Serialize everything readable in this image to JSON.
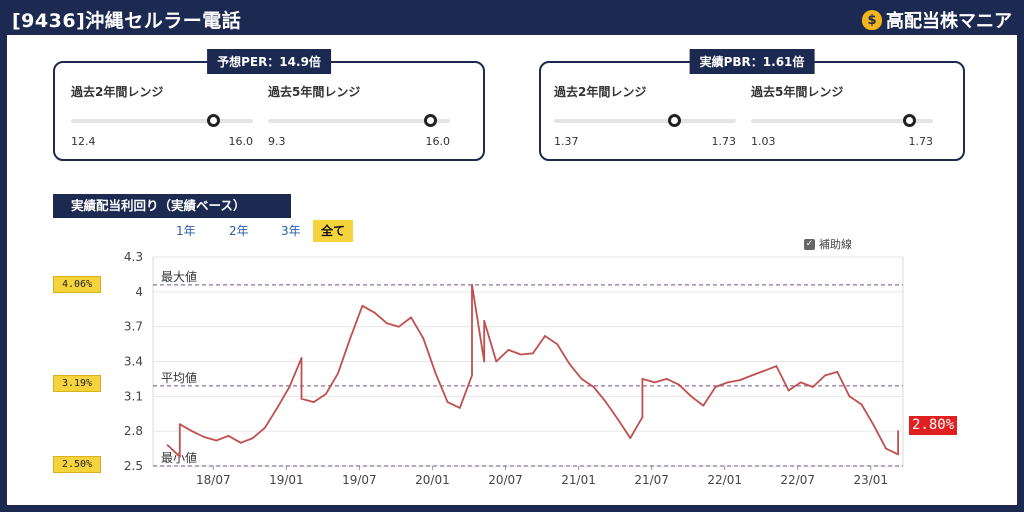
{
  "header": {
    "title": "[9436]沖縄セルラー電話",
    "brand": "高配当株マニア",
    "brand_icon": "money-bag-icon"
  },
  "per_card": {
    "title": "予想PER：14.9倍",
    "ranges": [
      {
        "label": "過去2年間レンジ",
        "min": "12.4",
        "max": "16.0",
        "position": 0.78
      },
      {
        "label": "過去5年間レンジ",
        "min": "9.3",
        "max": "16.0",
        "position": 0.89
      }
    ]
  },
  "pbr_card": {
    "title": "実績PBR：1.61倍",
    "ranges": [
      {
        "label": "過去2年間レンジ",
        "min": "1.37",
        "max": "1.73",
        "position": 0.66
      },
      {
        "label": "過去5年間レンジ",
        "min": "1.03",
        "max": "1.73",
        "position": 0.87
      }
    ]
  },
  "yield_section": {
    "title": "実績配当利回り（実績ベース）",
    "periods": [
      "1年",
      "2年",
      "3年",
      "全て"
    ],
    "active_period": "全て",
    "aux_lines_label": "補助線",
    "max_badge": "4.06%",
    "avg_badge": "3.19%",
    "min_badge": "2.50%",
    "current_badge": "2.80%"
  },
  "colors": {
    "navy": "#1c2a52",
    "line": "#c0504d",
    "badge": "#f5d33c",
    "current": "#e02020",
    "ref": "#7a4f8a"
  },
  "chart_data": {
    "type": "line",
    "ylim": [
      2.5,
      4.3
    ],
    "yticks": [
      "2.5",
      "2.8",
      "3.1",
      "3.4",
      "3.7",
      "4",
      "4.3"
    ],
    "xticks": [
      {
        "label": "18/07",
        "x": "2018-07"
      },
      {
        "label": "19/01",
        "x": "2019-01"
      },
      {
        "label": "19/07",
        "x": "2019-07"
      },
      {
        "label": "20/01",
        "x": "2020-01"
      },
      {
        "label": "20/07",
        "x": "2020-07"
      },
      {
        "label": "21/01",
        "x": "2021-01"
      },
      {
        "label": "21/07",
        "x": "2021-07"
      },
      {
        "label": "22/01",
        "x": "2022-01"
      },
      {
        "label": "22/07",
        "x": "2022-07"
      },
      {
        "label": "23/01",
        "x": "2023-01"
      }
    ],
    "reference_lines": [
      {
        "label": "最大値",
        "value": 4.06
      },
      {
        "label": "平均値",
        "value": 3.19
      },
      {
        "label": "最小値",
        "value": 2.5
      }
    ],
    "series": [
      {
        "points": [
          [
            "2018-03",
            2.68
          ],
          [
            "2018-04",
            2.58
          ],
          [
            "2018-04",
            2.86
          ],
          [
            "2018-05",
            2.8
          ],
          [
            "2018-06",
            2.75
          ],
          [
            "2018-07",
            2.72
          ],
          [
            "2018-08",
            2.76
          ],
          [
            "2018-09",
            2.7
          ],
          [
            "2018-10",
            2.74
          ],
          [
            "2018-11",
            2.83
          ],
          [
            "2018-12",
            3.0
          ],
          [
            "2019-01",
            3.18
          ],
          [
            "2019-02",
            3.43
          ],
          [
            "2019-02",
            3.08
          ],
          [
            "2019-03",
            3.05
          ],
          [
            "2019-04",
            3.12
          ],
          [
            "2019-05",
            3.3
          ],
          [
            "2019-06",
            3.6
          ],
          [
            "2019-07",
            3.88
          ],
          [
            "2019-08",
            3.82
          ],
          [
            "2019-09",
            3.73
          ],
          [
            "2019-10",
            3.7
          ],
          [
            "2019-11",
            3.78
          ],
          [
            "2019-12",
            3.6
          ],
          [
            "2020-01",
            3.3
          ],
          [
            "2020-02",
            3.05
          ],
          [
            "2020-03",
            3.0
          ],
          [
            "2020-04",
            3.28
          ],
          [
            "2020-04",
            4.06
          ],
          [
            "2020-05",
            3.4
          ],
          [
            "2020-05",
            3.75
          ],
          [
            "2020-06",
            3.4
          ],
          [
            "2020-07",
            3.5
          ],
          [
            "2020-08",
            3.46
          ],
          [
            "2020-09",
            3.47
          ],
          [
            "2020-10",
            3.62
          ],
          [
            "2020-11",
            3.55
          ],
          [
            "2020-12",
            3.38
          ],
          [
            "2021-01",
            3.25
          ],
          [
            "2021-02",
            3.18
          ],
          [
            "2021-03",
            3.05
          ],
          [
            "2021-04",
            2.9
          ],
          [
            "2021-05",
            2.74
          ],
          [
            "2021-06",
            2.92
          ],
          [
            "2021-06",
            3.25
          ],
          [
            "2021-07",
            3.22
          ],
          [
            "2021-08",
            3.25
          ],
          [
            "2021-09",
            3.2
          ],
          [
            "2021-10",
            3.1
          ],
          [
            "2021-11",
            3.02
          ],
          [
            "2021-12",
            3.18
          ],
          [
            "2022-01",
            3.22
          ],
          [
            "2022-02",
            3.24
          ],
          [
            "2022-03",
            3.28
          ],
          [
            "2022-04",
            3.32
          ],
          [
            "2022-05",
            3.36
          ],
          [
            "2022-06",
            3.15
          ],
          [
            "2022-07",
            3.22
          ],
          [
            "2022-08",
            3.18
          ],
          [
            "2022-09",
            3.28
          ],
          [
            "2022-10",
            3.31
          ],
          [
            "2022-11",
            3.1
          ],
          [
            "2022-12",
            3.03
          ],
          [
            "2023-01",
            2.85
          ],
          [
            "2023-02",
            2.65
          ],
          [
            "2023-03",
            2.6
          ],
          [
            "2023-03",
            2.8
          ]
        ]
      }
    ],
    "current_value": 2.8
  }
}
